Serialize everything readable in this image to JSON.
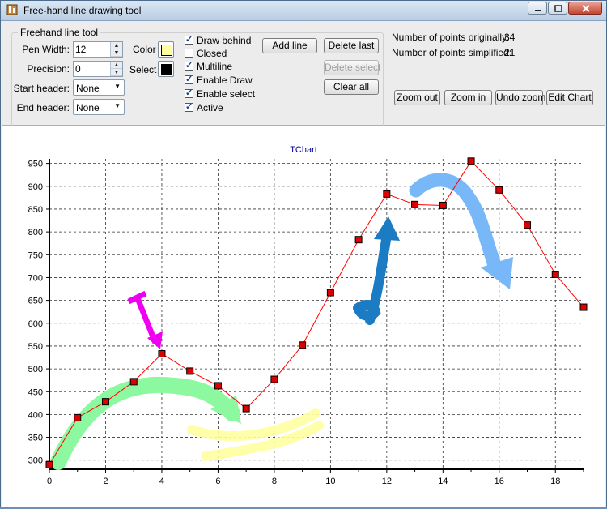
{
  "window": {
    "title": "Free-hand line drawing tool",
    "icon": "app-icon"
  },
  "group": {
    "title": "Freehand line tool"
  },
  "pen_width": {
    "label": "Pen Width:",
    "value": "12"
  },
  "precision": {
    "label": "Precision:",
    "value": "0"
  },
  "color": {
    "label": "Color",
    "swatch": "#ffffa0"
  },
  "select": {
    "label": "Select",
    "swatch": "#000000"
  },
  "start_header": {
    "label": "Start header:",
    "value": "None"
  },
  "end_header": {
    "label": "End header:",
    "value": "None"
  },
  "checkboxes": [
    {
      "label": "Draw behind",
      "checked": true
    },
    {
      "label": "Closed",
      "checked": false
    },
    {
      "label": "Multiline",
      "checked": true
    },
    {
      "label": "Enable Draw",
      "checked": true
    },
    {
      "label": "Enable select",
      "checked": true
    },
    {
      "label": "Active",
      "checked": true
    }
  ],
  "buttons": {
    "add_line": "Add line",
    "delete_last": "Delete last",
    "delete_select": "Delete select",
    "clear_all": "Clear all",
    "zoom_out": "Zoom out",
    "zoom_in": "Zoom in",
    "undo_zoom": "Undo zoom",
    "edit_chart": "Edit Chart"
  },
  "stats": {
    "original_label": "Number of points originally:",
    "original_value": "34",
    "simplified_label": "Number of points simplified:",
    "simplified_value": "21"
  },
  "chart_data": {
    "type": "line",
    "title": "TChart",
    "xlabel": "",
    "ylabel": "",
    "x": [
      0,
      1,
      2,
      3,
      4,
      5,
      6,
      7,
      8,
      9,
      10,
      11,
      12,
      13,
      14,
      15,
      16,
      17,
      18,
      19
    ],
    "values": [
      290,
      393,
      428,
      472,
      533,
      495,
      463,
      413,
      477,
      552,
      667,
      783,
      883,
      860,
      858,
      955,
      892,
      815,
      707,
      635
    ],
    "xlim": [
      0,
      19
    ],
    "ylim": [
      280,
      960
    ],
    "xticks": [
      "0",
      "2",
      "4",
      "6",
      "8",
      "10",
      "12",
      "14",
      "16",
      "18"
    ],
    "yticks": [
      "300",
      "350",
      "400",
      "450",
      "500",
      "550",
      "600",
      "650",
      "700",
      "750",
      "800",
      "850",
      "900",
      "950"
    ],
    "grid": true,
    "line_color": "#ff0000",
    "marker_color": "#dd0000",
    "title_color": "#0000a0",
    "freehand_colors": [
      "#8cf8a0",
      "#f000f0",
      "#ffffa0",
      "#1b7cc4",
      "#78b8f8"
    ]
  }
}
